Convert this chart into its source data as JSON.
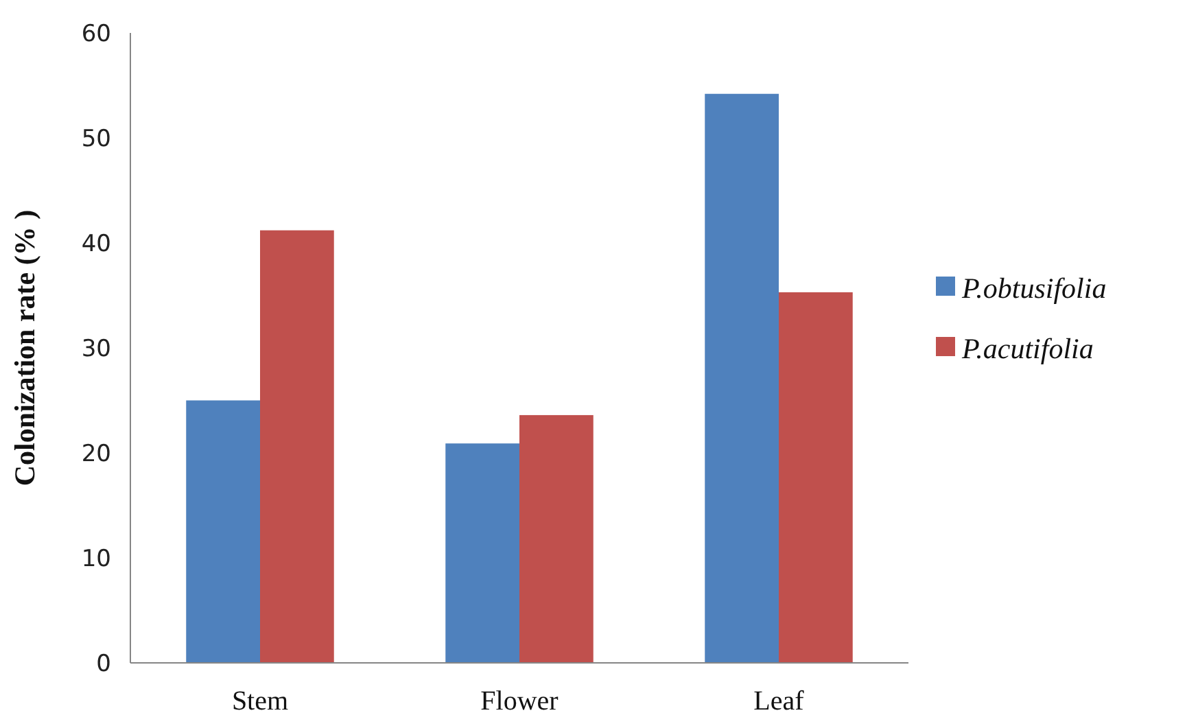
{
  "chart_data": {
    "type": "bar",
    "ylabel": "Colonization rate (% )",
    "categories": [
      "Stem",
      "Flower",
      "Leaf"
    ],
    "series": [
      {
        "name": "P.obtusifolia",
        "color": "#4f81bd",
        "values": [
          25.0,
          20.9,
          54.2
        ]
      },
      {
        "name": "P.acutifolia",
        "color": "#c0504d",
        "values": [
          41.2,
          23.6,
          35.3
        ]
      }
    ],
    "ylim": [
      0,
      60
    ],
    "yticks": [
      0,
      10,
      20,
      30,
      40,
      50,
      60
    ],
    "legend": "right"
  }
}
